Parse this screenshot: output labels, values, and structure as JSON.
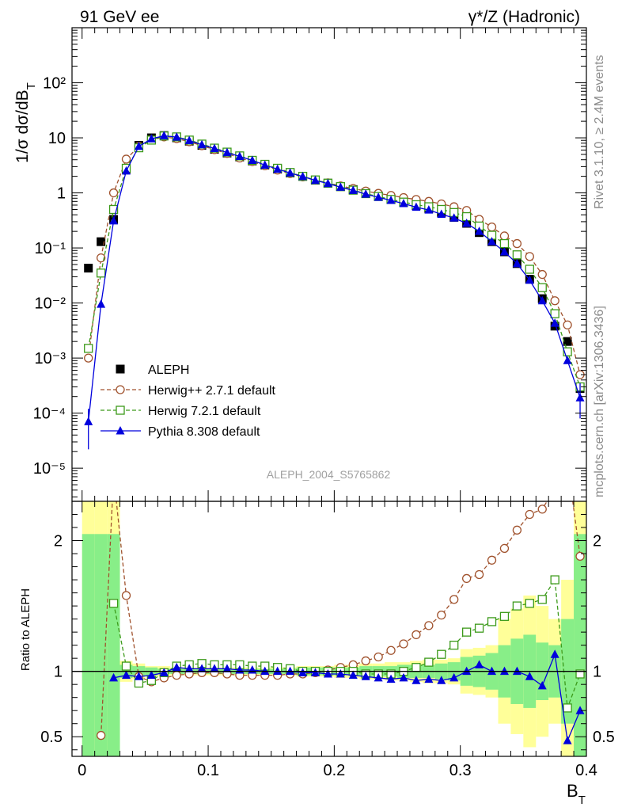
{
  "header": {
    "left": "91 GeV ee",
    "right": "γ*/Z (Hadronic)"
  },
  "side_labels": {
    "rivet": "Rivet 3.1.10, ≥ 2.4M events",
    "mcplots": "mcplots.cern.ch [arXiv:1306.3436]"
  },
  "analysis_id": "ALEPH_2004_S5765862",
  "colors": {
    "aleph": "#000000",
    "herwigpp": "#a0522d",
    "herwig7": "#3c9a1a",
    "pythia": "#0000dd",
    "band_outer": "#ffff99",
    "band_inner": "#88ee88"
  },
  "chart_data": [
    {
      "type": "scatter",
      "panel": "main",
      "ylabel": "1/σ  dσ/dB_T",
      "yscale": "log",
      "ylim": [
        2.5e-06,
        1000
      ],
      "xlim": [
        -0.008,
        0.4
      ],
      "y_tick_labels": [
        "10⁻⁵",
        "10⁻⁴",
        "10⁻³",
        "10⁻²",
        "10⁻¹",
        "1",
        "10",
        "10²"
      ],
      "legend_position": "lower-left",
      "x": [
        0.005,
        0.015,
        0.025,
        0.035,
        0.045,
        0.055,
        0.065,
        0.075,
        0.085,
        0.095,
        0.105,
        0.115,
        0.125,
        0.135,
        0.145,
        0.155,
        0.165,
        0.175,
        0.185,
        0.195,
        0.205,
        0.215,
        0.225,
        0.235,
        0.245,
        0.255,
        0.265,
        0.275,
        0.285,
        0.295,
        0.305,
        0.315,
        0.325,
        0.335,
        0.345,
        0.355,
        0.365,
        0.375,
        0.385,
        0.395
      ],
      "series": [
        {
          "name": "ALEPH",
          "style": "square-filled",
          "values": [
            0.043,
            0.13,
            0.33,
            2.7,
            7.3,
            10.0,
            11.0,
            10.0,
            8.7,
            7.3,
            6.2,
            5.3,
            4.5,
            3.8,
            3.2,
            2.7,
            2.3,
            2.0,
            1.7,
            1.5,
            1.3,
            1.15,
            1.0,
            0.88,
            0.78,
            0.68,
            0.59,
            0.52,
            0.44,
            0.36,
            0.28,
            0.19,
            0.13,
            0.085,
            0.052,
            0.027,
            0.012,
            0.0038,
            0.002,
            0.00028
          ]
        },
        {
          "name": "Herwig++ 2.7.1 default",
          "style": "circle-open-dashed",
          "values": [
            0.001,
            0.066,
            1.0,
            4.1,
            7.0,
            9.2,
            10.4,
            9.7,
            8.5,
            7.2,
            6.1,
            5.2,
            4.3,
            3.7,
            3.1,
            2.6,
            2.25,
            1.95,
            1.7,
            1.52,
            1.34,
            1.2,
            1.08,
            0.98,
            0.9,
            0.82,
            0.76,
            0.7,
            0.63,
            0.56,
            0.48,
            0.33,
            0.24,
            0.165,
            0.12,
            0.07,
            0.033,
            0.011,
            0.004,
            0.0005
          ]
        },
        {
          "name": "Herwig 7.2.1 default",
          "style": "square-open-dashed",
          "values": [
            0.0015,
            0.035,
            0.5,
            2.8,
            6.6,
            9.1,
            10.8,
            10.4,
            9.1,
            7.7,
            6.5,
            5.5,
            4.7,
            3.9,
            3.3,
            2.8,
            2.35,
            2.0,
            1.72,
            1.5,
            1.3,
            1.12,
            0.97,
            0.86,
            0.76,
            0.68,
            0.61,
            0.56,
            0.5,
            0.44,
            0.37,
            0.25,
            0.17,
            0.12,
            0.075,
            0.041,
            0.019,
            0.0064,
            0.0013,
            0.0003
          ]
        },
        {
          "name": "Pythia 8.308 default",
          "style": "triangle-filled-solid",
          "values": [
            7e-05,
            0.0095,
            0.31,
            2.5,
            7.0,
            9.6,
            10.9,
            10.3,
            8.9,
            7.5,
            6.4,
            5.4,
            4.6,
            3.9,
            3.2,
            2.7,
            2.3,
            1.98,
            1.69,
            1.48,
            1.27,
            1.11,
            0.95,
            0.83,
            0.73,
            0.64,
            0.55,
            0.49,
            0.41,
            0.35,
            0.28,
            0.2,
            0.13,
            0.085,
            0.052,
            0.026,
            0.011,
            0.0043,
            0.0009,
            0.00019
          ]
        }
      ]
    },
    {
      "type": "line",
      "panel": "ratio",
      "ylabel": "Ratio to ALEPH",
      "xlabel": "B_T",
      "ylim": [
        0.35,
        2.3
      ],
      "xlim": [
        -0.008,
        0.4
      ],
      "reference_line": 1,
      "y_tick_labels": [
        "0.5",
        "1",
        "2"
      ],
      "x_tick_labels": [
        "0",
        "0.1",
        "0.2",
        "0.3",
        "0.4"
      ],
      "x": [
        0.005,
        0.015,
        0.025,
        0.035,
        0.045,
        0.055,
        0.065,
        0.075,
        0.085,
        0.095,
        0.105,
        0.115,
        0.125,
        0.135,
        0.145,
        0.155,
        0.165,
        0.175,
        0.185,
        0.195,
        0.205,
        0.215,
        0.225,
        0.235,
        0.245,
        0.255,
        0.265,
        0.275,
        0.285,
        0.295,
        0.305,
        0.315,
        0.325,
        0.335,
        0.345,
        0.355,
        0.365,
        0.375,
        0.385,
        0.395
      ],
      "bands": {
        "outer_low": [
          0.0,
          0.0,
          0.0,
          0.92,
          0.94,
          0.96,
          0.96,
          0.97,
          0.97,
          0.97,
          0.97,
          0.97,
          0.97,
          0.97,
          0.97,
          0.97,
          0.97,
          0.96,
          0.96,
          0.96,
          0.95,
          0.95,
          0.94,
          0.94,
          0.93,
          0.93,
          0.92,
          0.91,
          0.91,
          0.9,
          0.83,
          0.82,
          0.8,
          0.6,
          0.52,
          0.42,
          0.5,
          0.6,
          0.3,
          0.0
        ],
        "outer_high": [
          2.3,
          2.3,
          2.3,
          1.08,
          1.06,
          1.04,
          1.04,
          1.03,
          1.03,
          1.03,
          1.03,
          1.03,
          1.03,
          1.03,
          1.03,
          1.03,
          1.03,
          1.04,
          1.04,
          1.04,
          1.05,
          1.05,
          1.06,
          1.06,
          1.07,
          1.07,
          1.08,
          1.09,
          1.09,
          1.1,
          1.17,
          1.18,
          1.2,
          1.4,
          1.48,
          1.58,
          1.5,
          1.4,
          1.7,
          2.3
        ],
        "inner_low": [
          0.0,
          0.0,
          0.0,
          0.95,
          0.96,
          0.97,
          0.98,
          0.98,
          0.98,
          0.98,
          0.98,
          0.98,
          0.98,
          0.98,
          0.98,
          0.98,
          0.98,
          0.97,
          0.97,
          0.97,
          0.97,
          0.97,
          0.96,
          0.96,
          0.96,
          0.95,
          0.95,
          0.95,
          0.94,
          0.93,
          0.89,
          0.88,
          0.86,
          0.8,
          0.75,
          0.72,
          0.78,
          0.8,
          0.6,
          0.0
        ],
        "inner_high": [
          2.05,
          2.05,
          2.05,
          1.05,
          1.04,
          1.03,
          1.02,
          1.02,
          1.02,
          1.02,
          1.02,
          1.02,
          1.02,
          1.02,
          1.02,
          1.02,
          1.02,
          1.03,
          1.03,
          1.03,
          1.03,
          1.03,
          1.04,
          1.04,
          1.04,
          1.05,
          1.05,
          1.05,
          1.06,
          1.07,
          1.11,
          1.12,
          1.14,
          1.2,
          1.25,
          1.28,
          1.22,
          1.2,
          1.4,
          2.05
        ]
      },
      "series": [
        {
          "name": "Herwig++ 2.7.1 default",
          "style": "circle-open-dashed",
          "values": [
            null,
            0.51,
            2.5,
            1.58,
            0.96,
            0.92,
            0.95,
            0.97,
            0.98,
            0.99,
            0.99,
            0.98,
            0.97,
            0.97,
            0.97,
            0.97,
            0.98,
            0.98,
            0.99,
            1.01,
            1.03,
            1.05,
            1.08,
            1.11,
            1.16,
            1.21,
            1.28,
            1.35,
            1.43,
            1.55,
            1.71,
            1.74,
            1.85,
            1.94,
            2.08,
            2.2,
            2.24,
            2.4,
            2.6,
            1.88
          ]
        },
        {
          "name": "Herwig 7.2.1 default",
          "style": "square-open-dashed",
          "values": [
            null,
            null,
            1.52,
            1.04,
            0.91,
            0.93,
            0.99,
            1.04,
            1.05,
            1.06,
            1.05,
            1.05,
            1.05,
            1.04,
            1.04,
            1.03,
            1.02,
            1.0,
            1.0,
            1.0,
            1.0,
            1.0,
            0.98,
            0.98,
            0.98,
            1.0,
            1.03,
            1.07,
            1.13,
            1.2,
            1.3,
            1.33,
            1.38,
            1.42,
            1.5,
            1.52,
            1.55,
            1.7,
            0.72,
            0.98
          ]
        },
        {
          "name": "Pythia 8.308 default",
          "style": "triangle-filled-solid",
          "values": [
            null,
            null,
            0.95,
            0.97,
            0.96,
            0.97,
            0.99,
            1.03,
            1.02,
            1.02,
            1.02,
            1.02,
            1.01,
            1.01,
            1.0,
            1.0,
            1.0,
            0.99,
            0.99,
            0.98,
            0.98,
            0.97,
            0.96,
            0.95,
            0.94,
            0.95,
            0.93,
            0.94,
            0.93,
            0.95,
            1.0,
            1.05,
            1.0,
            1.0,
            1.0,
            0.96,
            0.89,
            1.13,
            0.47,
            0.7
          ]
        }
      ]
    }
  ]
}
